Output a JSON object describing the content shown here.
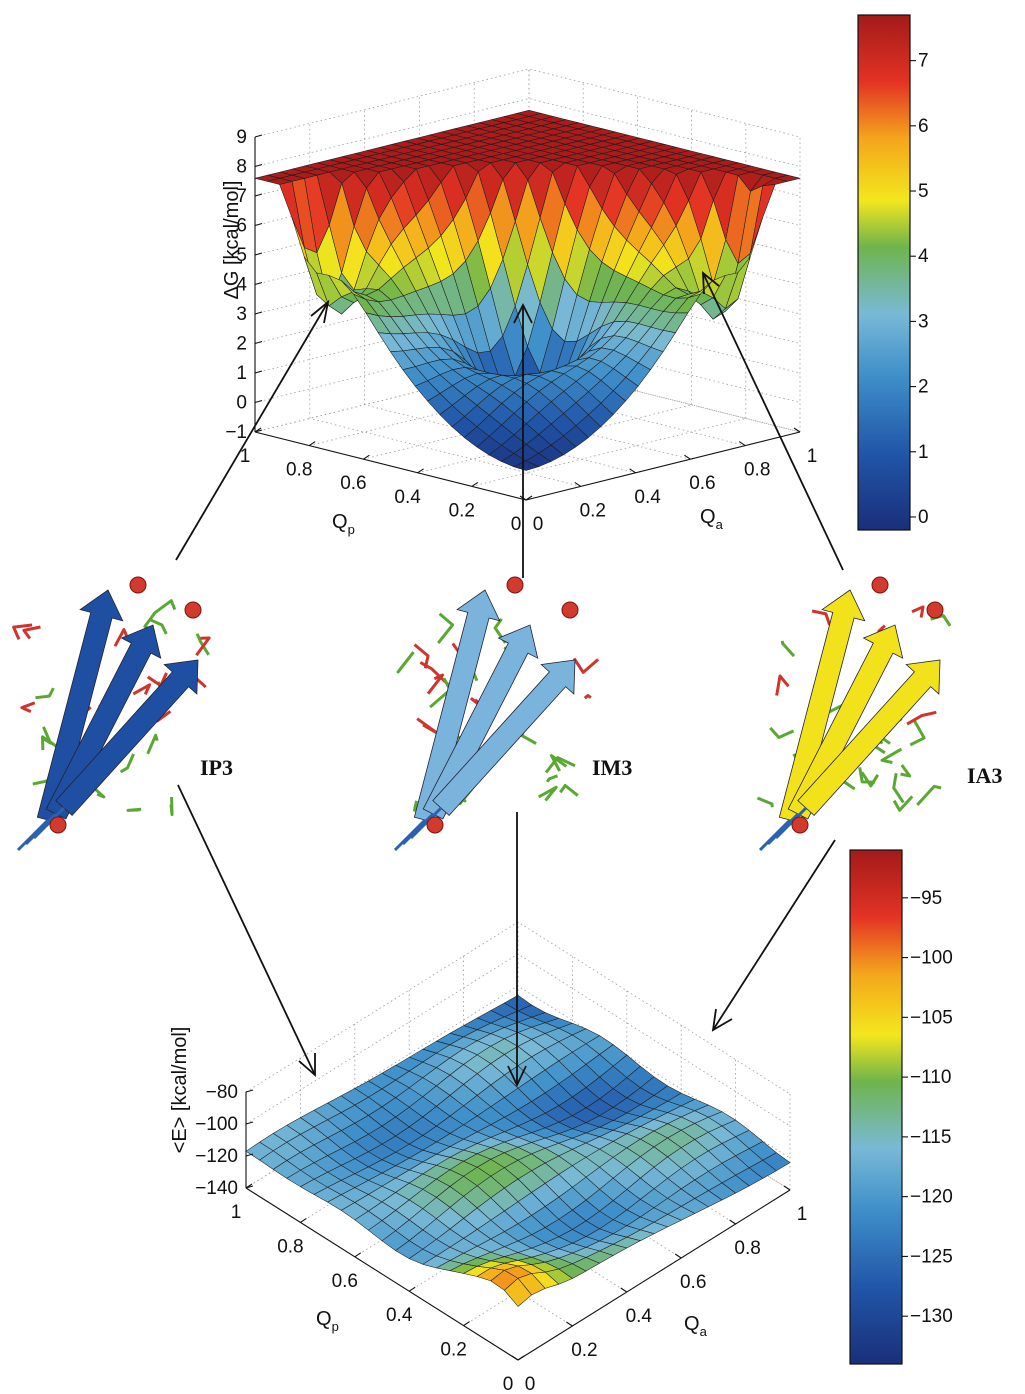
{
  "chart_data": [
    {
      "type": "surface",
      "zlabel": "ΔG [kcal/mol]",
      "xlabel_main": "Q",
      "xlabel_sub": "p",
      "ylabel_main": "Q",
      "ylabel_sub": "a",
      "zlim": [
        -1,
        9
      ],
      "xlim": [
        0,
        1
      ],
      "ylim": [
        0,
        1
      ],
      "ztick_labels": [
        "9",
        "8",
        "7",
        "6",
        "5",
        "4",
        "3",
        "2",
        "1",
        "0",
        "−1"
      ],
      "xtick_labels": [
        "1",
        "0.8",
        "0.6",
        "0.4",
        "0.2",
        "0"
      ],
      "ytick_labels": [
        "0",
        "0.2",
        "0.4",
        "0.6",
        "0.8",
        "1"
      ],
      "surface": {
        "minimum": 0,
        "minimum_at": [
          0,
          0
        ],
        "plateau": 7.6
      },
      "colorbar": {
        "range": [
          -0.2,
          7.7
        ],
        "tick_labels": [
          "7",
          "6",
          "5",
          "4",
          "3",
          "2",
          "1",
          "0"
        ],
        "tick_values": [
          7,
          6,
          5,
          4,
          3,
          2,
          1,
          0
        ],
        "colormap": "jet"
      }
    },
    {
      "type": "surface",
      "zlabel": "<E> [kcal/mol]",
      "xlabel_main": "Q",
      "xlabel_sub": "p",
      "ylabel_main": "Q",
      "ylabel_sub": "a",
      "zlim": [
        -140,
        -80
      ],
      "xlim": [
        0,
        1
      ],
      "ylim": [
        0,
        1
      ],
      "ztick_labels": [
        "−80",
        "−100",
        "−120",
        "−140"
      ],
      "xtick_labels": [
        "1",
        "0.8",
        "0.6",
        "0.4",
        "0.2",
        "0"
      ],
      "ytick_labels": [
        "0",
        "0.2",
        "0.4",
        "0.6",
        "0.8",
        "1"
      ],
      "colorbar": {
        "range": [
          -134,
          -91
        ],
        "tick_labels": [
          "−95",
          "−100",
          "−105",
          "−110",
          "−115",
          "−120",
          "−125",
          "−130"
        ],
        "tick_values": [
          -95,
          -100,
          -105,
          -110,
          -115,
          -120,
          -125,
          -130
        ],
        "colormap": "jet"
      }
    }
  ],
  "structures": [
    {
      "label": "IP3",
      "color": "#1f4fa3"
    },
    {
      "label": "IM3",
      "color": "#7ab4dc"
    },
    {
      "label": "IA3",
      "color": "#f2e21c"
    }
  ],
  "colors": {
    "sidechain_red": "#d0342c",
    "sidechain_green": "#5aa832",
    "backbone_blue": "#2b62b0"
  }
}
